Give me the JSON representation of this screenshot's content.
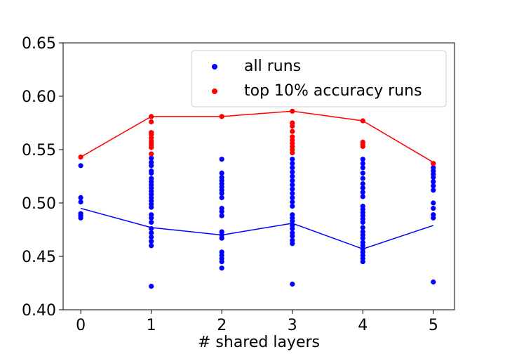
{
  "chart_data": {
    "type": "scatter",
    "title": "",
    "xlabel": "# shared layers",
    "ylabel": "",
    "xlim": [
      -0.25,
      5.3
    ],
    "ylim": [
      0.4,
      0.65
    ],
    "xticks": [
      0,
      1,
      2,
      3,
      4,
      5
    ],
    "xtick_labels": [
      "0",
      "1",
      "2",
      "3",
      "4",
      "5"
    ],
    "yticks": [
      0.4,
      0.45,
      0.5,
      0.55,
      0.6,
      0.65
    ],
    "ytick_labels": [
      "0.40",
      "0.45",
      "0.50",
      "0.55",
      "0.60",
      "0.65"
    ],
    "grid": false,
    "legend_position": "top-right",
    "series": [
      {
        "name": "all runs",
        "color": "#0000ff",
        "points": [
          [
            0,
            0.535
          ],
          [
            0,
            0.505
          ],
          [
            0,
            0.501
          ],
          [
            0,
            0.49
          ],
          [
            0,
            0.488
          ],
          [
            0,
            0.486
          ],
          [
            1,
            0.542
          ],
          [
            1,
            0.538
          ],
          [
            1,
            0.535
          ],
          [
            1,
            0.53
          ],
          [
            1,
            0.528
          ],
          [
            1,
            0.523
          ],
          [
            1,
            0.52
          ],
          [
            1,
            0.517
          ],
          [
            1,
            0.514
          ],
          [
            1,
            0.511
          ],
          [
            1,
            0.508
          ],
          [
            1,
            0.505
          ],
          [
            1,
            0.502
          ],
          [
            1,
            0.499
          ],
          [
            1,
            0.496
          ],
          [
            1,
            0.489
          ],
          [
            1,
            0.486
          ],
          [
            1,
            0.482
          ],
          [
            1,
            0.476
          ],
          [
            1,
            0.472
          ],
          [
            1,
            0.468
          ],
          [
            1,
            0.464
          ],
          [
            1,
            0.46
          ],
          [
            1,
            0.422
          ],
          [
            2,
            0.541
          ],
          [
            2,
            0.528
          ],
          [
            2,
            0.524
          ],
          [
            2,
            0.521
          ],
          [
            2,
            0.518
          ],
          [
            2,
            0.515
          ],
          [
            2,
            0.512
          ],
          [
            2,
            0.509
          ],
          [
            2,
            0.505
          ],
          [
            2,
            0.495
          ],
          [
            2,
            0.492
          ],
          [
            2,
            0.488
          ],
          [
            2,
            0.473
          ],
          [
            2,
            0.47
          ],
          [
            2,
            0.467
          ],
          [
            2,
            0.454
          ],
          [
            2,
            0.451
          ],
          [
            2,
            0.448
          ],
          [
            2,
            0.445
          ],
          [
            2,
            0.439
          ],
          [
            3,
            0.541
          ],
          [
            3,
            0.537
          ],
          [
            3,
            0.533
          ],
          [
            3,
            0.529
          ],
          [
            3,
            0.525
          ],
          [
            3,
            0.521
          ],
          [
            3,
            0.517
          ],
          [
            3,
            0.513
          ],
          [
            3,
            0.509
          ],
          [
            3,
            0.505
          ],
          [
            3,
            0.501
          ],
          [
            3,
            0.497
          ],
          [
            3,
            0.489
          ],
          [
            3,
            0.486
          ],
          [
            3,
            0.483
          ],
          [
            3,
            0.479
          ],
          [
            3,
            0.476
          ],
          [
            3,
            0.472
          ],
          [
            3,
            0.469
          ],
          [
            3,
            0.465
          ],
          [
            3,
            0.462
          ],
          [
            3,
            0.424
          ],
          [
            4,
            0.541
          ],
          [
            4,
            0.537
          ],
          [
            4,
            0.533
          ],
          [
            4,
            0.528
          ],
          [
            4,
            0.523
          ],
          [
            4,
            0.518
          ],
          [
            4,
            0.514
          ],
          [
            4,
            0.51
          ],
          [
            4,
            0.506
          ],
          [
            4,
            0.497
          ],
          [
            4,
            0.494
          ],
          [
            4,
            0.491
          ],
          [
            4,
            0.488
          ],
          [
            4,
            0.485
          ],
          [
            4,
            0.482
          ],
          [
            4,
            0.477
          ],
          [
            4,
            0.473
          ],
          [
            4,
            0.47
          ],
          [
            4,
            0.467
          ],
          [
            4,
            0.463
          ],
          [
            4,
            0.46
          ],
          [
            4,
            0.457
          ],
          [
            4,
            0.454
          ],
          [
            4,
            0.451
          ],
          [
            4,
            0.448
          ],
          [
            4,
            0.445
          ],
          [
            5,
            0.537
          ],
          [
            5,
            0.533
          ],
          [
            5,
            0.53
          ],
          [
            5,
            0.527
          ],
          [
            5,
            0.524
          ],
          [
            5,
            0.52
          ],
          [
            5,
            0.516
          ],
          [
            5,
            0.512
          ],
          [
            5,
            0.5
          ],
          [
            5,
            0.495
          ],
          [
            5,
            0.489
          ],
          [
            5,
            0.486
          ],
          [
            5,
            0.426
          ]
        ],
        "mean_line": [
          [
            0,
            0.495
          ],
          [
            1,
            0.477
          ],
          [
            2,
            0.47
          ],
          [
            3,
            0.481
          ],
          [
            4,
            0.457
          ],
          [
            5,
            0.479
          ]
        ]
      },
      {
        "name": "top 10% accuracy runs",
        "color": "#ff0000",
        "points": [
          [
            0,
            0.543
          ],
          [
            1,
            0.581
          ],
          [
            1,
            0.576
          ],
          [
            1,
            0.566
          ],
          [
            1,
            0.564
          ],
          [
            1,
            0.561
          ],
          [
            1,
            0.558
          ],
          [
            1,
            0.556
          ],
          [
            1,
            0.554
          ],
          [
            1,
            0.552
          ],
          [
            1,
            0.546
          ],
          [
            2,
            0.581
          ],
          [
            3,
            0.586
          ],
          [
            3,
            0.575
          ],
          [
            3,
            0.572
          ],
          [
            3,
            0.567
          ],
          [
            3,
            0.562
          ],
          [
            3,
            0.559
          ],
          [
            3,
            0.556
          ],
          [
            3,
            0.553
          ],
          [
            3,
            0.55
          ],
          [
            3,
            0.547
          ],
          [
            4,
            0.577
          ],
          [
            4,
            0.557
          ],
          [
            4,
            0.555
          ],
          [
            4,
            0.553
          ],
          [
            5,
            0.537
          ]
        ],
        "mean_line": [
          [
            0,
            0.543
          ],
          [
            1,
            0.581
          ],
          [
            2,
            0.581
          ],
          [
            3,
            0.586
          ],
          [
            4,
            0.577
          ],
          [
            5,
            0.538
          ]
        ]
      }
    ]
  }
}
